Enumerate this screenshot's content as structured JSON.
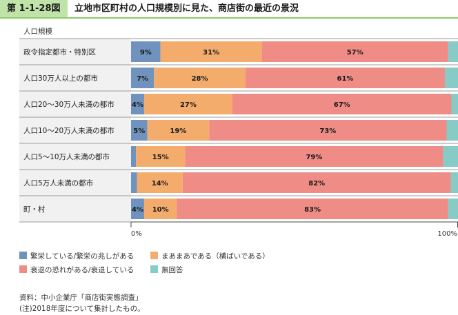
{
  "figure_label": "第 1-1-28図",
  "title": "立地市区町村の人口規模別に見た、商店街の最近の景況",
  "chart_data": {
    "type": "bar",
    "orientation": "horizontal",
    "stacked": true,
    "normalized": true,
    "row_axis_title": "人口規模",
    "categories": [
      "政令指定都市・特別区",
      "人口30万人以上の都市",
      "人口20～30万人未満の都市",
      "人口10～20万人未満の都市",
      "人口5～10万人未満の都市",
      "人口5万人未満の都市",
      "町・村"
    ],
    "series": [
      {
        "name": "繁栄している/繁栄の兆しがある",
        "color": "#6f93bd",
        "values": [
          9,
          7,
          4,
          5,
          1.5,
          1.8,
          4
        ],
        "labels": [
          "9%",
          "7%",
          "4%",
          "5%",
          "",
          "",
          "4%"
        ]
      },
      {
        "name": "まあまあである（横ばいである）",
        "color": "#f3ac6c",
        "values": [
          31,
          28,
          27,
          19,
          15,
          14,
          10
        ],
        "labels": [
          "31%",
          "28%",
          "27%",
          "19%",
          "15%",
          "14%",
          "10%"
        ]
      },
      {
        "name": "衰退の恐れがある/衰退している",
        "color": "#ef8c86",
        "values": [
          57,
          61,
          67,
          73,
          79,
          82,
          83
        ],
        "labels": [
          "57%",
          "61%",
          "67%",
          "73%",
          "79%",
          "82%",
          "83%"
        ]
      },
      {
        "name": "無回答",
        "color": "#86cbc6",
        "values": [
          3,
          4,
          2,
          3.5,
          4.5,
          2.2,
          3
        ],
        "labels": [
          "",
          "",
          "",
          "",
          "",
          "",
          ""
        ]
      }
    ],
    "x_range": [
      0,
      100
    ],
    "x_tick_labels": [
      "0%",
      "100%"
    ],
    "legend_placement": "bottom"
  },
  "notes": [
    "資料：中小企業庁「商店街実態調査」",
    "(注)2018年度について集計したもの。"
  ]
}
